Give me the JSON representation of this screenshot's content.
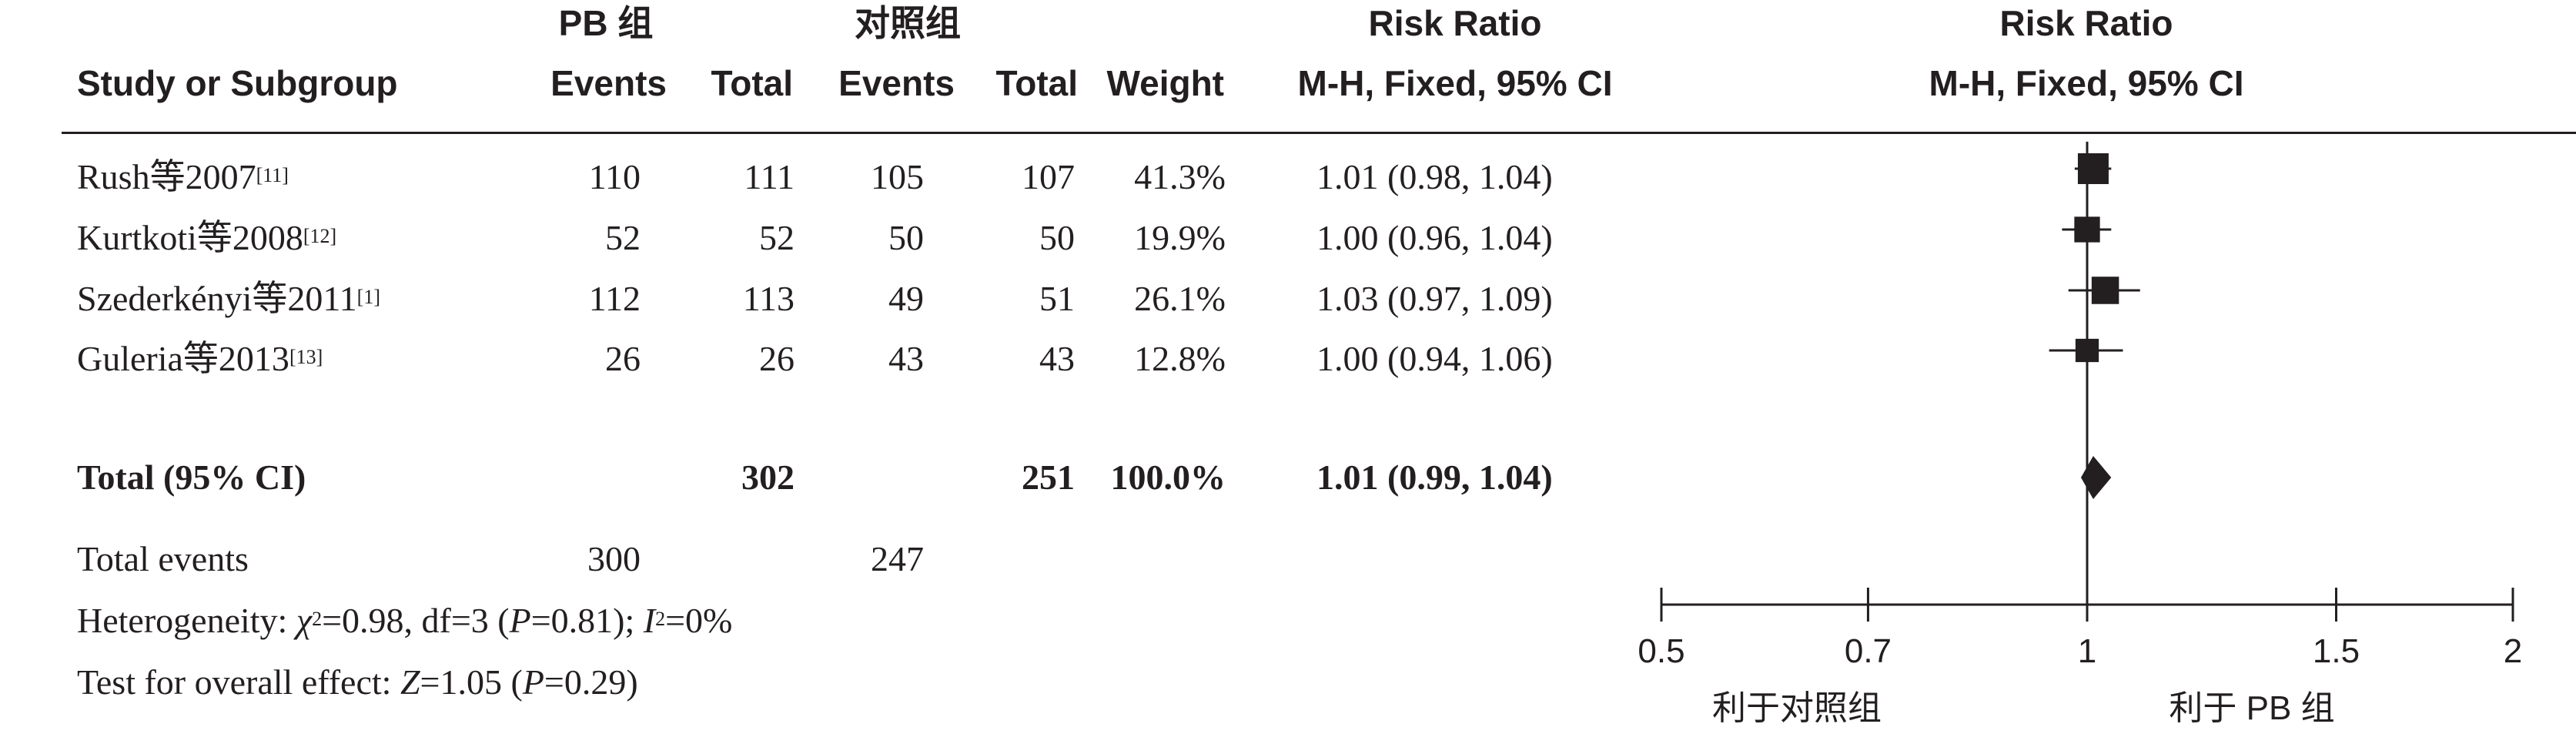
{
  "header": {
    "group1": "PB 组",
    "group2": "对照组",
    "risk_ratio_col": "Risk Ratio",
    "risk_ratio_plot": "Risk Ratio",
    "study_col": "Study or Subgroup",
    "events1": "Events",
    "total1": "Total",
    "events2": "Events",
    "total2": "Total",
    "weight": "Weight",
    "method_col": "M-H, Fixed, 95% CI",
    "method_plot": "M-H, Fixed, 95% CI"
  },
  "studies": [
    {
      "name": "Rush等2007",
      "ref": "[11]",
      "events1": "110",
      "total1": "111",
      "events2": "105",
      "total2": "107",
      "weight": "41.3%",
      "ci_text": "1.01 (0.98, 1.04)"
    },
    {
      "name": "Kurtkoti等2008",
      "ref": "[12]",
      "events1": "52",
      "total1": "52",
      "events2": "50",
      "total2": "50",
      "weight": "19.9%",
      "ci_text": "1.00 (0.96, 1.04)"
    },
    {
      "name": "Szederkényi等2011",
      "ref": "[1]",
      "events1": "112",
      "total1": "113",
      "events2": "49",
      "total2": "51",
      "weight": "26.1%",
      "ci_text": "1.03 (0.97, 1.09)"
    },
    {
      "name": "Guleria等2013",
      "ref": "[13]",
      "events1": "26",
      "total1": "26",
      "events2": "43",
      "total2": "43",
      "weight": "12.8%",
      "ci_text": "1.00 (0.94, 1.06)"
    }
  ],
  "total": {
    "label": "Total (95% CI)",
    "total1": "302",
    "total2": "251",
    "weight": "100.0%",
    "ci_text": "1.01 (0.99, 1.04)"
  },
  "total_events": {
    "label": "Total events",
    "events1": "300",
    "events2": "247"
  },
  "heterogeneity": {
    "prefix": "Heterogeneity: ",
    "chi_symbol": "χ",
    "chi_value": "=0.98, df=3 (",
    "p_symbol": "P",
    "p_value": "=0.81); ",
    "i_symbol": "I",
    "i_value": "=0%"
  },
  "overall_effect": {
    "prefix": "Test for overall effect: ",
    "z_symbol": "Z",
    "z_value": "=1.05 (",
    "p_symbol": "P",
    "p_value": "=0.29)"
  },
  "axis": {
    "favours_left": "利于对照组",
    "favours_right": "利于 PB 组"
  },
  "chart_data": {
    "type": "forest",
    "scale": "log",
    "xlim": [
      0.5,
      2
    ],
    "ticks": [
      {
        "value": 0.5,
        "label": "0.5"
      },
      {
        "value": 0.7,
        "label": "0.7"
      },
      {
        "value": 1,
        "label": "1"
      },
      {
        "value": 1.5,
        "label": "1.5"
      },
      {
        "value": 2,
        "label": "2"
      }
    ],
    "studies": [
      {
        "rr": 1.01,
        "lower": 0.98,
        "upper": 1.04,
        "weight": 41.3
      },
      {
        "rr": 1.0,
        "lower": 0.96,
        "upper": 1.04,
        "weight": 19.9
      },
      {
        "rr": 1.03,
        "lower": 0.97,
        "upper": 1.09,
        "weight": 26.1
      },
      {
        "rr": 1.0,
        "lower": 0.94,
        "upper": 1.06,
        "weight": 12.8
      }
    ],
    "pooled": {
      "rr": 1.01,
      "lower": 0.99,
      "upper": 1.04
    }
  }
}
